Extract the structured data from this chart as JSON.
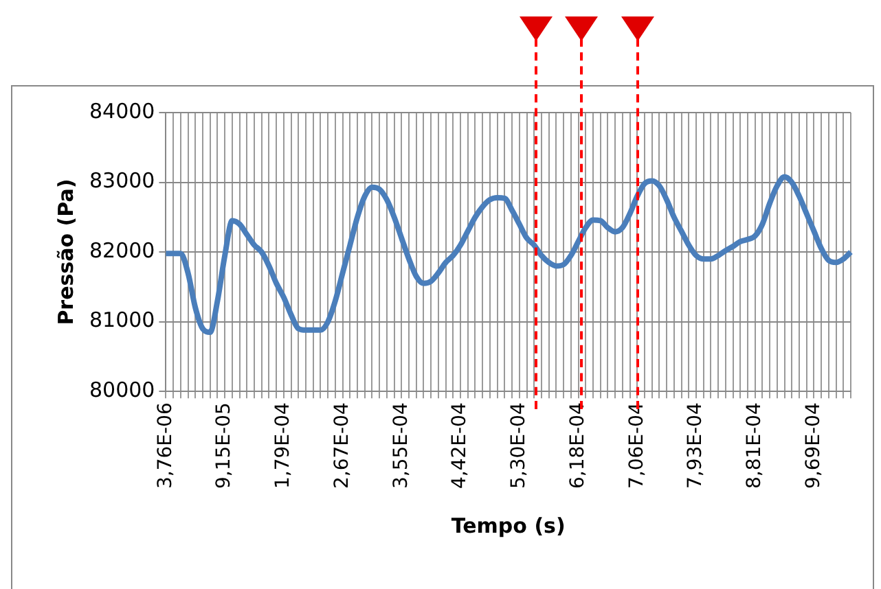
{
  "chart_data": {
    "type": "line",
    "xlabel": "Tempo (s)",
    "ylabel": "Pressão (Pa)",
    "color": "#4a7ebb",
    "grid": true,
    "legend": false,
    "marker": "none",
    "categories": [
      "3,76E-06",
      null,
      null,
      null,
      null,
      null,
      null,
      null,
      "9,15E-05",
      null,
      null,
      null,
      null,
      null,
      null,
      null,
      "1,79E-04",
      null,
      null,
      null,
      null,
      null,
      null,
      null,
      "2,67E-04",
      null,
      null,
      null,
      null,
      null,
      null,
      null,
      "3,55E-04",
      null,
      null,
      null,
      null,
      null,
      null,
      null,
      "4,42E-04",
      null,
      null,
      null,
      null,
      null,
      null,
      null,
      "5,30E-04",
      null,
      null,
      null,
      null,
      null,
      null,
      null,
      "6,18E-04",
      null,
      null,
      null,
      null,
      null,
      null,
      null,
      "7,06E-04",
      null,
      null,
      null,
      null,
      null,
      null,
      null,
      "7,93E-04",
      null,
      null,
      null,
      null,
      null,
      null,
      null,
      "8,81E-04",
      null,
      null,
      null,
      null,
      null,
      null,
      null,
      "9,69E-04",
      null,
      null,
      null,
      null,
      null
    ],
    "values": [
      81980,
      81980,
      81980,
      81700,
      81200,
      80900,
      80850,
      81300,
      81950,
      82450,
      82400,
      82250,
      82100,
      82000,
      81800,
      81550,
      81350,
      81100,
      80900,
      80880,
      80880,
      80880,
      81000,
      81300,
      81700,
      82100,
      82500,
      82800,
      82930,
      82900,
      82750,
      82500,
      82200,
      81900,
      81650,
      81550,
      81580,
      81700,
      81850,
      81950,
      82100,
      82300,
      82500,
      82650,
      82750,
      82780,
      82770,
      82600,
      82400,
      82200,
      82100,
      81950,
      81850,
      81800,
      81820,
      81950,
      82150,
      82350,
      82460,
      82450,
      82350,
      82290,
      82350,
      82550,
      82800,
      82980,
      83020,
      82950,
      82750,
      82500,
      82300,
      82100,
      81950,
      81900,
      81900,
      81950,
      82020,
      82080,
      82150,
      82180,
      82230,
      82400,
      82700,
      82950,
      83080,
      83000,
      82800,
      82550,
      82300,
      82050,
      81880,
      81850,
      81900,
      82000
    ],
    "ylim": [
      80000,
      84000
    ],
    "yticks": [
      80000,
      81000,
      82000,
      83000,
      84000
    ]
  }
}
